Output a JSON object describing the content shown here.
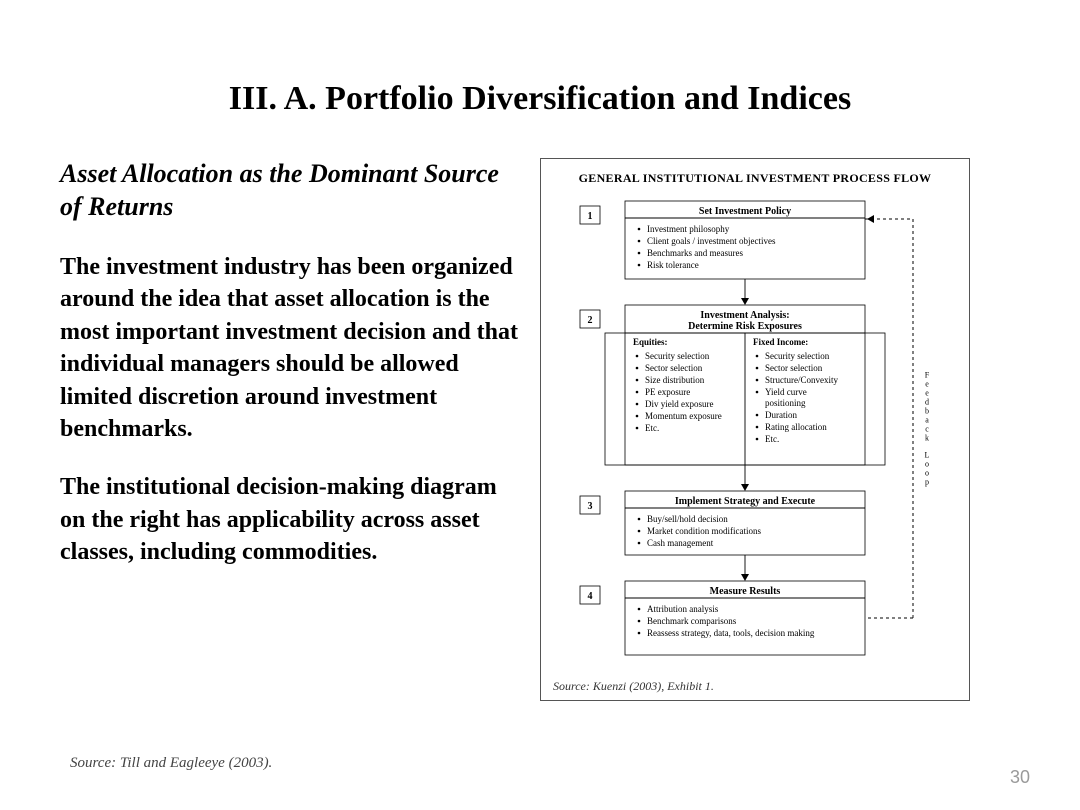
{
  "title": "III.  A.  Portfolio Diversification and Indices",
  "left": {
    "subhead": "Asset Allocation as the Dominant Source of Returns",
    "para1": "The investment industry has been organized around the idea that asset allocation is the most important investment decision and that individual managers should be allowed limited discretion around investment benchmarks.",
    "para2": "The institutional decision-making diagram on the right has applicability across asset classes, including commodities.",
    "source": "Source:  Till and Eagleeye (2003)."
  },
  "page_number": "30",
  "figure": {
    "title": "GENERAL INSTITUTIONAL INVESTMENT PROCESS FLOW",
    "source": "Source: Kuenzi (2003), Exhibit 1.",
    "feedback_label": "Feedback Loop",
    "style": {
      "border_color": "#555555",
      "box_stroke": "#000000",
      "bg": "#ffffff",
      "text_color": "#000000",
      "arrow_stroke": "#000000",
      "dash_pattern": "3,3"
    },
    "steps": [
      {
        "num": "1",
        "title": "Set Investment Policy",
        "bullets": [
          "Investment philosophy",
          "Client goals / investment objectives",
          "Benchmarks and measures",
          "Risk tolerance"
        ]
      },
      {
        "num": "2",
        "title": "Investment Analysis:\nDetermine Risk Exposures",
        "columns": [
          {
            "header": "Equities:",
            "bullets": [
              "Security selection",
              "Sector selection",
              "Size distribution",
              "PE exposure",
              "Div yield exposure",
              "Momentum exposure",
              "Etc."
            ]
          },
          {
            "header": "Fixed Income:",
            "bullets": [
              "Security selection",
              "Sector selection",
              "Structure/Convexity",
              "Yield curve positioning",
              "Duration",
              "Rating allocation",
              "Etc."
            ]
          }
        ]
      },
      {
        "num": "3",
        "title": "Implement Strategy and Execute",
        "bullets": [
          "Buy/sell/hold decision",
          "Market condition modifications",
          "Cash management"
        ]
      },
      {
        "num": "4",
        "title": "Measure Results",
        "bullets": [
          "Attribution analysis",
          "Benchmark comparisons",
          "Reassess strategy, data, tools, decision making"
        ]
      }
    ]
  }
}
